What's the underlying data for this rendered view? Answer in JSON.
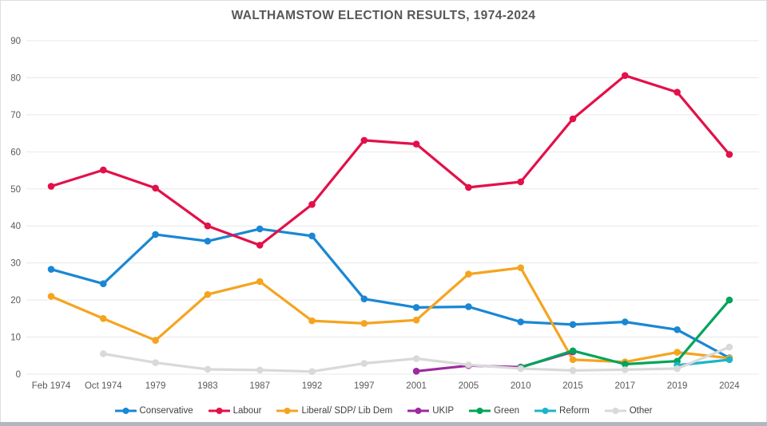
{
  "chart_data": {
    "type": "line",
    "title": "WALTHAMSTOW ELECTION RESULTS, 1974-2024",
    "xlabel": "",
    "ylabel": "",
    "categories": [
      "Feb 1974",
      "Oct 1974",
      "1979",
      "1983",
      "1987",
      "1992",
      "1997",
      "2001",
      "2005",
      "2010",
      "2015",
      "2017",
      "2019",
      "2024"
    ],
    "series": [
      {
        "name": "Conservative",
        "color": "#1a87d4",
        "values": [
          28.3,
          24.4,
          37.7,
          35.9,
          39.2,
          37.3,
          20.3,
          18.0,
          18.2,
          14.1,
          13.4,
          14.1,
          12.0,
          4.4
        ]
      },
      {
        "name": "Labour",
        "color": "#e31049",
        "values": [
          50.7,
          55.1,
          50.2,
          40.0,
          34.8,
          45.8,
          63.1,
          62.1,
          50.4,
          51.9,
          68.9,
          80.6,
          76.1,
          59.3
        ]
      },
      {
        "name": "Liberal/ SDP/ Lib Dem",
        "color": "#f5a41f",
        "values": [
          21.0,
          15.0,
          9.1,
          21.5,
          25.0,
          14.4,
          13.7,
          14.6,
          27.0,
          28.7,
          3.9,
          3.3,
          5.9,
          4.3
        ]
      },
      {
        "name": "UKIP",
        "color": "#9c2aa0",
        "values": [
          null,
          null,
          null,
          null,
          null,
          null,
          null,
          0.8,
          2.3,
          1.9,
          6.0,
          null,
          null,
          null
        ]
      },
      {
        "name": "Green",
        "color": "#00a45a",
        "values": [
          null,
          null,
          null,
          null,
          null,
          null,
          null,
          null,
          null,
          1.8,
          6.3,
          2.7,
          3.5,
          20.0
        ]
      },
      {
        "name": "Reform",
        "color": "#1cb4c9",
        "values": [
          null,
          null,
          null,
          null,
          null,
          null,
          null,
          null,
          null,
          null,
          null,
          null,
          2.4,
          3.9
        ]
      },
      {
        "name": "Other",
        "color": "#d9d9d9",
        "values": [
          null,
          5.5,
          3.1,
          1.3,
          1.1,
          0.7,
          2.9,
          4.2,
          2.5,
          1.5,
          1.0,
          1.2,
          1.5,
          7.3
        ]
      }
    ],
    "ylim": [
      0,
      90
    ],
    "yticks": [
      0,
      10,
      20,
      30,
      40,
      50,
      60,
      70,
      80,
      90
    ],
    "grid": "horizontal",
    "legend_position": "bottom"
  },
  "theme": {
    "grid_color": "#e8e8e8",
    "axis_text_color": "#595959",
    "title_color": "#575757",
    "legend_text_color": "#3f3f3f",
    "background": "#ffffff",
    "bottom_strip_color": "#b2b7bd"
  }
}
